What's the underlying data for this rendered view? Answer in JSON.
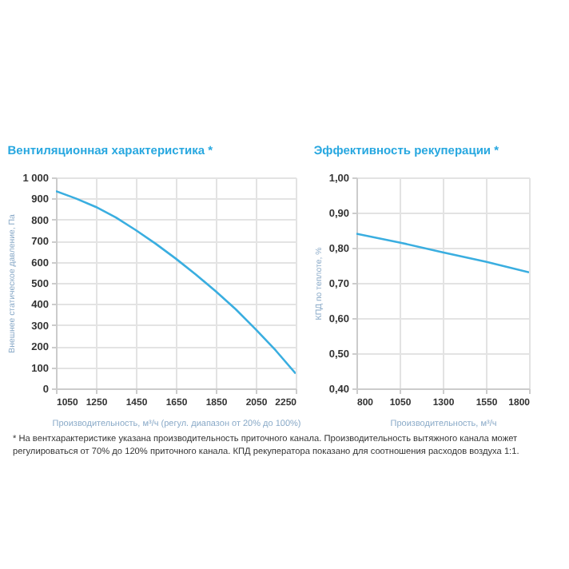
{
  "chart_data": [
    {
      "type": "line",
      "title": "Вентиляционная характеристика *",
      "xlabel": "Производительность, м³/ч (регул. диапазон от 20% до 100%)",
      "ylabel": "Внешнее статическое давление, Па",
      "x": [
        1050,
        1150,
        1250,
        1350,
        1450,
        1550,
        1650,
        1750,
        1850,
        1950,
        2050,
        2150,
        2250
      ],
      "series": [
        {
          "color": "#3aaee0",
          "values": [
            935,
            900,
            860,
            810,
            750,
            685,
            615,
            540,
            460,
            375,
            280,
            180,
            70
          ]
        }
      ],
      "xlim": [
        1050,
        2250
      ],
      "xticks": [
        1050,
        1250,
        1450,
        1650,
        1850,
        2050,
        2250
      ],
      "ylim": [
        0,
        1000
      ],
      "yticks": [
        0,
        100,
        200,
        300,
        400,
        500,
        600,
        700,
        800,
        900,
        {
          "value": 1000,
          "label": "1 000"
        }
      ],
      "grid": true,
      "marker": "none",
      "annotations": [
        "* На вентхарактеристике указана производительность приточного канала. Производительность вытяжного канала может регулироваться от 70% до 120% приточного канала. КПД рекуператора показано для соотношения расходов воздуха 1:1."
      ]
    },
    {
      "type": "line",
      "title": "Эффективность рекуперации *",
      "xlabel": "Производительность, м³/ч",
      "ylabel": "КПД по теплоте, %",
      "x": [
        800,
        1050,
        1300,
        1550,
        1800
      ],
      "series": [
        {
          "color": "#3aaee0",
          "values": [
            0.84,
            0.815,
            0.787,
            0.76,
            0.73
          ]
        }
      ],
      "xlim": [
        800,
        1800
      ],
      "xticks": [
        800,
        1050,
        1300,
        1550,
        1800
      ],
      "ylim": [
        0.4,
        1.0
      ],
      "yticks": [
        {
          "value": 0.4,
          "label": "0,40"
        },
        {
          "value": 0.5,
          "label": "0,50"
        },
        {
          "value": 0.6,
          "label": "0,60"
        },
        {
          "value": 0.7,
          "label": "0,70"
        },
        {
          "value": 0.8,
          "label": "0,80"
        },
        {
          "value": 0.9,
          "label": "0,90"
        },
        {
          "value": 1.0,
          "label": "1,00"
        }
      ],
      "grid": true,
      "marker": "none"
    }
  ]
}
